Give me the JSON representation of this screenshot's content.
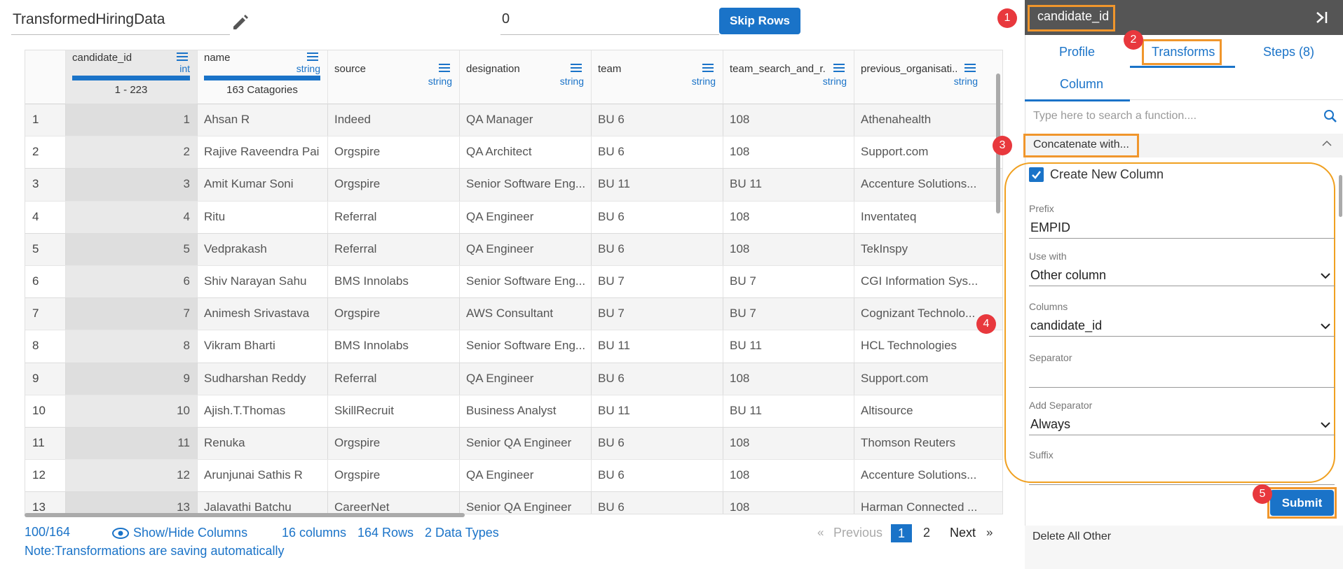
{
  "header": {
    "dataset_name": "TransformedHiringData",
    "skip_value": "0",
    "skip_button": "Skip Rows"
  },
  "table": {
    "columns": [
      {
        "name": "candidate_id",
        "type": "int",
        "summary": "1 - 223"
      },
      {
        "name": "name",
        "type": "string",
        "summary": "163 Catagories"
      },
      {
        "name": "source",
        "type": "string"
      },
      {
        "name": "designation",
        "type": "string"
      },
      {
        "name": "team",
        "type": "string"
      },
      {
        "name": "team_search_and_r...",
        "type": "string"
      },
      {
        "name": "previous_organisati...",
        "type": "string"
      }
    ],
    "rows": [
      [
        1,
        1,
        "Ahsan R",
        "Indeed",
        "QA Manager",
        "BU 6",
        "108",
        "Athenahealth"
      ],
      [
        2,
        2,
        "Rajive Raveendra Pai",
        "Orgspire",
        "QA Architect",
        "BU 6",
        "108",
        "Support.com"
      ],
      [
        3,
        3,
        "Amit Kumar Soni",
        "Orgspire",
        "Senior Software Eng...",
        "BU 11",
        "BU 11",
        "Accenture Solutions..."
      ],
      [
        4,
        4,
        "Ritu",
        "Referral",
        "QA Engineer",
        "BU 6",
        "108",
        "Inventateq"
      ],
      [
        5,
        5,
        "Vedprakash",
        "Referral",
        "QA Engineer",
        "BU 6",
        "108",
        "TekInspy"
      ],
      [
        6,
        6,
        "Shiv Narayan Sahu",
        "BMS Innolabs",
        "Senior Software Eng...",
        "BU 7",
        "BU 7",
        "CGI Information Sys..."
      ],
      [
        7,
        7,
        "Animesh Srivastava",
        "Orgspire",
        "AWS Consultant",
        "BU 7",
        "BU 7",
        "Cognizant Technolo..."
      ],
      [
        8,
        8,
        "Vikram Bharti",
        "BMS Innolabs",
        "Senior Software Eng...",
        "BU 11",
        "BU 11",
        "HCL Technologies"
      ],
      [
        9,
        9,
        "Sudharshan Reddy",
        "Referral",
        "QA Engineer",
        "BU 6",
        "108",
        "Support.com"
      ],
      [
        10,
        10,
        "Ajish.T.Thomas",
        "SkillRecruit",
        "Business Analyst",
        "BU 11",
        "BU 11",
        "Altisource"
      ],
      [
        11,
        11,
        "Renuka",
        "Orgspire",
        "Senior QA Engineer",
        "BU 6",
        "108",
        "Thomson Reuters"
      ],
      [
        12,
        12,
        "Arunjunai Sathis R",
        "Orgspire",
        "QA Engineer",
        "BU 6",
        "108",
        "Accenture Solutions..."
      ],
      [
        13,
        13,
        "Jalavathi Batchu",
        "CareerNet",
        "Senior QA Engineer",
        "BU 6",
        "108",
        "Harman Connected ..."
      ]
    ]
  },
  "footer": {
    "count": "100/164",
    "show_hide": "Show/Hide Columns",
    "columns": "16 columns",
    "rows": "164 Rows",
    "types": "2 Data Types",
    "prev_icon": "«",
    "previous": "Previous",
    "pages": [
      "1",
      "2"
    ],
    "next": "Next",
    "next_icon": "»",
    "note": "Note:Transformations are saving automatically"
  },
  "panel": {
    "column_title": "candidate_id",
    "tabs": [
      "Profile",
      "Transforms",
      "Steps (8)"
    ],
    "subtab": "Column",
    "search_placeholder": "Type here to search a function....",
    "section": "Concatenate with...",
    "checkbox": "Create New Column",
    "fields": [
      {
        "label": "Prefix",
        "value": "EMPID"
      },
      {
        "label": "Use with",
        "value": "Other column"
      },
      {
        "label": "Columns",
        "value": "candidate_id"
      },
      {
        "label": "Separator"
      },
      {
        "label": "Add Separator",
        "value": "Always"
      },
      {
        "label": "Suffix"
      }
    ],
    "submit": "Submit",
    "next_item": "Delete All Other"
  },
  "callouts": [
    "1",
    "2",
    "3",
    "4",
    "5"
  ]
}
